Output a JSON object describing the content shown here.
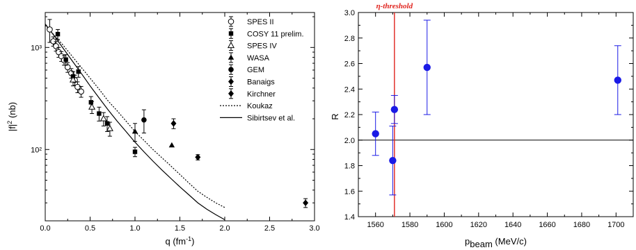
{
  "chart_data": [
    {
      "type": "scatter",
      "xlabel": "q (fm",
      "xlabel_sup": "-1",
      "xlabel_end": ")",
      "ylabel": "|f|",
      "ylabel_sup": "2",
      "ylabel_end": " (nb)",
      "xlim": [
        0,
        3.0
      ],
      "ylim": [
        20,
        2200
      ],
      "yscale": "log",
      "x_ticks": [
        "0.0",
        "0.5",
        "1.0",
        "1.5",
        "2.0",
        "2.5",
        "3.0"
      ],
      "y_ticks": [
        "10³",
        "10²"
      ],
      "grid": false,
      "legend_position": "top-right",
      "series": [
        {
          "name": "SPES II",
          "marker": "open-circle",
          "points": [
            [
              0.05,
              1500,
              380
            ],
            [
              0.09,
              1150,
              120
            ],
            [
              0.12,
              1030,
              110
            ],
            [
              0.15,
              900,
              100
            ],
            [
              0.18,
              820,
              90
            ],
            [
              0.21,
              750,
              80
            ],
            [
              0.25,
              640,
              70
            ],
            [
              0.29,
              560,
              60
            ],
            [
              0.33,
              480,
              55
            ],
            [
              0.36,
              410,
              50
            ],
            [
              0.4,
              370,
              45
            ]
          ]
        },
        {
          "name": "COSY 11 prelim.",
          "marker": "filled-square",
          "points": [
            [
              0.14,
              1350,
              150
            ],
            [
              0.23,
              760,
              90
            ],
            [
              0.31,
              520,
              60
            ],
            [
              0.37,
              580,
              70
            ],
            [
              0.51,
              290,
              40
            ],
            [
              0.6,
              225,
              35
            ],
            [
              0.69,
              180,
              30
            ],
            [
              1.0,
              95,
              10
            ]
          ]
        },
        {
          "name": "SPES IV",
          "marker": "open-triangle",
          "points": [
            [
              0.31,
              480,
              60
            ],
            [
              0.52,
              260,
              35
            ],
            [
              0.65,
              200,
              30
            ],
            [
              0.72,
              160,
              25
            ]
          ]
        },
        {
          "name": "WASA",
          "marker": "filled-triangle",
          "points": [
            [
              1.0,
              150,
              30
            ],
            [
              1.41,
              110,
              0
            ]
          ]
        },
        {
          "name": "GEM",
          "marker": "filled-circle",
          "points": [
            [
              1.1,
              195,
              50
            ]
          ]
        },
        {
          "name": "Banaigs",
          "marker": "filled-diamond",
          "points": [
            [
              1.43,
              180,
              20
            ],
            [
              1.7,
              84,
              5
            ]
          ]
        },
        {
          "name": "Kirchner",
          "marker": "filled-diamond",
          "points": [
            [
              2.9,
              30,
              3
            ]
          ]
        }
      ],
      "curves": [
        {
          "name": "Koukaz",
          "style": "dotted",
          "x": [
            0,
            0.1,
            0.2,
            0.3,
            0.4,
            0.5,
            0.6,
            0.7,
            0.8,
            0.9,
            1.0,
            1.1,
            1.2,
            1.3,
            1.4,
            1.5,
            1.6,
            1.7,
            1.8,
            1.9,
            2.0
          ],
          "y": [
            1650,
            1320,
            1050,
            820,
            640,
            500,
            390,
            300,
            240,
            190,
            150,
            123,
            100,
            83,
            69,
            57,
            47,
            39,
            34,
            30,
            27
          ]
        },
        {
          "name": "Sibirtsev et al.",
          "style": "solid",
          "x": [
            0,
            0.1,
            0.2,
            0.3,
            0.4,
            0.5,
            0.6,
            0.7,
            0.8,
            0.9,
            1.0,
            1.1,
            1.2,
            1.3,
            1.4,
            1.5,
            1.6,
            1.7,
            1.8,
            1.9,
            2.0
          ],
          "y": [
            1700,
            1300,
            980,
            740,
            560,
            420,
            320,
            245,
            190,
            150,
            118,
            95,
            77,
            63,
            52,
            43,
            36,
            30,
            26,
            23,
            20.5
          ]
        }
      ]
    },
    {
      "type": "scatter",
      "xlabel": "p",
      "xlabel_sub": "beam",
      "xlabel_end": " (MeV/c)",
      "ylabel": "R",
      "xlim": [
        1550,
        1710
      ],
      "ylim": [
        1.4,
        3.0
      ],
      "x_ticks": [
        "1560",
        "1580",
        "1600",
        "1620",
        "1640",
        "1660",
        "1680",
        "1700"
      ],
      "y_ticks": [
        "1.4",
        "1.6",
        "1.8",
        "2.0",
        "2.2",
        "2.4",
        "2.6",
        "2.8",
        "3.0"
      ],
      "grid": false,
      "colors": {
        "points": "#1a1ae6",
        "threshold": "#e0221c"
      },
      "reference_line": 2.0,
      "threshold": {
        "x": 1571,
        "label": "η-threshold"
      },
      "series": [
        {
          "name": "",
          "points": [
            [
              1560,
              2.05,
              0.17
            ],
            [
              1570,
              1.84,
              0.27
            ],
            [
              1571,
              2.24,
              0.11
            ],
            [
              1590,
              2.57,
              0.37
            ],
            [
              1701,
              2.47,
              0.27
            ]
          ]
        }
      ]
    }
  ]
}
